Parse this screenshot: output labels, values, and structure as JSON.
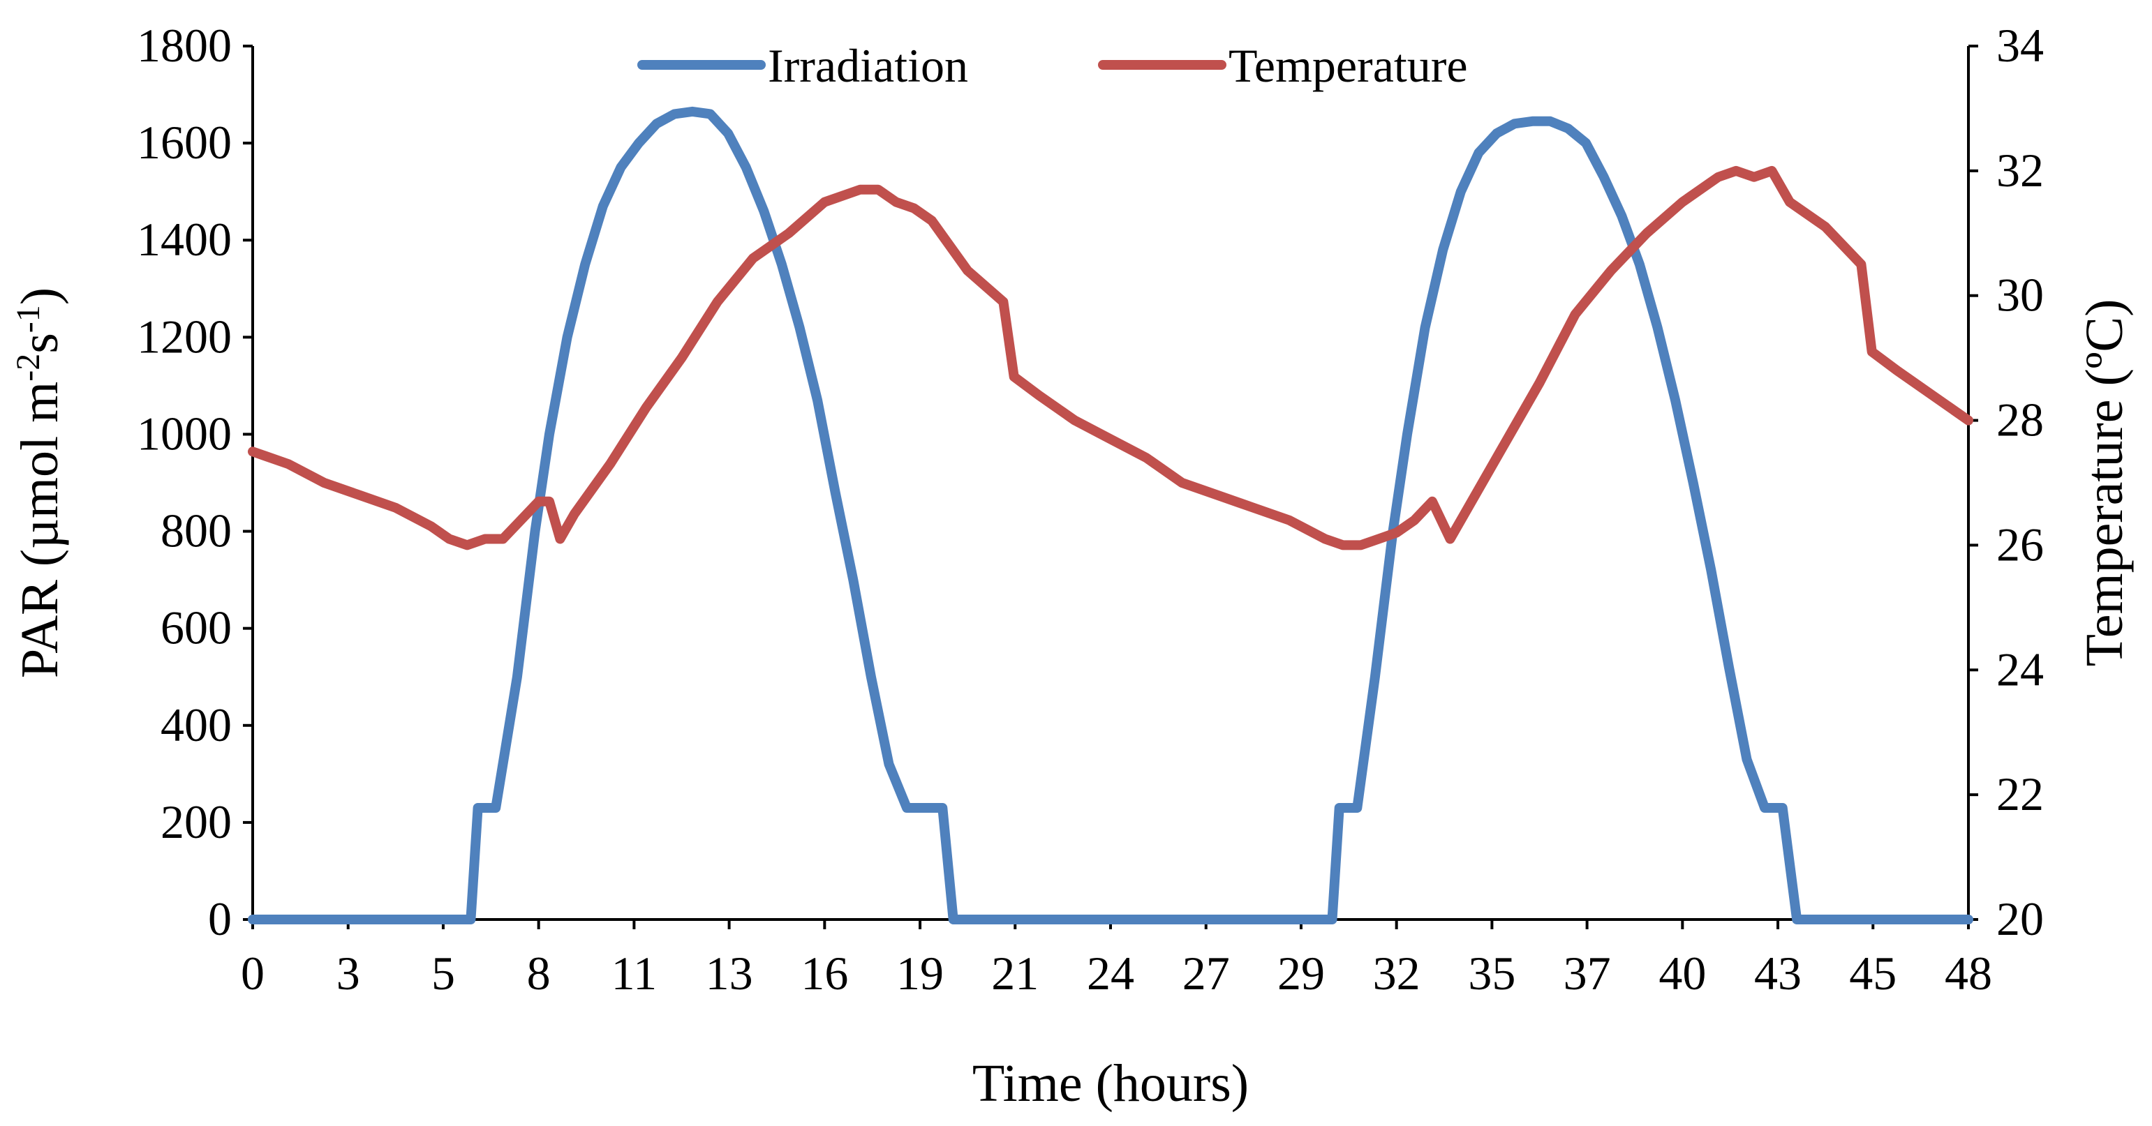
{
  "chart_data": {
    "type": "line",
    "title": "",
    "xlabel": "Time (hours)",
    "ylabel": {
      "prefix": "PAR (µmol m",
      "sup1": "-2",
      "mid": "s",
      "sup2": "-1",
      "suffix": ")"
    },
    "y2label": "Temperature (ºC)",
    "xlim": [
      0,
      48
    ],
    "ylim": [
      0,
      1800
    ],
    "y2lim": [
      20,
      34
    ],
    "x_tick_positions": [
      0,
      2.67,
      5.33,
      8,
      10.67,
      13.33,
      16,
      18.67,
      21.33,
      24,
      26.67,
      29.33,
      32,
      34.67,
      37.33,
      40,
      42.67,
      45.33,
      48
    ],
    "x_tick_labels": [
      "0",
      "3",
      "5",
      "8",
      "11",
      "13",
      "16",
      "19",
      "21",
      "24",
      "27",
      "29",
      "32",
      "35",
      "37",
      "40",
      "43",
      "45",
      "48"
    ],
    "y_ticks": [
      0,
      200,
      400,
      600,
      800,
      1000,
      1200,
      1400,
      1600,
      1800
    ],
    "y_tick_labels": [
      "0",
      "200",
      "400",
      "600",
      "800",
      "1000",
      "1200",
      "1400",
      "1600",
      "1800"
    ],
    "y2_ticks": [
      20,
      22,
      24,
      26,
      28,
      30,
      32,
      34
    ],
    "y2_tick_labels": [
      "20",
      "22",
      "24",
      "26",
      "28",
      "30",
      "32",
      "34"
    ],
    "legend_position": "top-center",
    "series": [
      {
        "name": "Irradiation",
        "axis": "left",
        "color": "#4f81bd",
        "x": [
          0,
          6.1,
          6.3,
          6.8,
          7.4,
          7.9,
          8.3,
          8.8,
          9.3,
          9.8,
          10.3,
          10.8,
          11.3,
          11.8,
          12.3,
          12.8,
          13.3,
          13.8,
          14.3,
          14.8,
          15.3,
          15.8,
          16.3,
          16.8,
          17.3,
          17.8,
          18.3,
          18.8,
          19.3,
          19.6,
          19.9,
          20.0,
          20.3,
          30.2,
          30.4,
          30.9,
          31.4,
          31.9,
          32.3,
          32.8,
          33.3,
          33.8,
          34.3,
          34.8,
          35.3,
          35.8,
          36.3,
          36.8,
          37.3,
          37.8,
          38.3,
          38.8,
          39.3,
          39.8,
          40.3,
          40.8,
          41.3,
          41.8,
          42.3,
          42.8,
          43.2,
          43.6,
          43.8,
          44.2,
          48
        ],
        "values": [
          0,
          0,
          230,
          230,
          500,
          800,
          1000,
          1200,
          1350,
          1470,
          1550,
          1600,
          1640,
          1660,
          1665,
          1660,
          1620,
          1550,
          1460,
          1350,
          1220,
          1070,
          880,
          700,
          500,
          320,
          230,
          230,
          230,
          0,
          0,
          0,
          0,
          0,
          230,
          230,
          500,
          800,
          1000,
          1220,
          1380,
          1500,
          1580,
          1620,
          1640,
          1645,
          1645,
          1630,
          1600,
          1530,
          1450,
          1350,
          1220,
          1070,
          900,
          720,
          520,
          330,
          230,
          230,
          0,
          0,
          0,
          0,
          0
        ]
      },
      {
        "name": "Temperature",
        "axis": "right",
        "color": "#c0504d",
        "x": [
          0,
          1,
          2,
          3,
          4,
          5,
          5.5,
          6,
          6.5,
          7,
          7.5,
          8,
          8.3,
          8.6,
          9,
          9.5,
          10,
          11,
          12,
          13,
          14,
          15,
          16,
          17,
          17.5,
          18,
          18.5,
          19,
          20,
          21,
          21.3,
          22,
          23,
          24,
          25,
          26,
          27,
          28,
          29,
          30,
          30.5,
          31,
          31.5,
          32,
          32.5,
          33,
          33.5,
          34,
          35,
          36,
          37,
          38,
          39,
          40,
          41,
          41.5,
          42,
          42.5,
          43,
          44,
          45,
          45.3,
          46,
          47,
          48
        ],
        "values": [
          27.5,
          27.3,
          27.0,
          26.8,
          26.6,
          26.3,
          26.1,
          26.0,
          26.1,
          26.1,
          26.4,
          26.7,
          26.7,
          26.1,
          26.5,
          26.9,
          27.3,
          28.2,
          29.0,
          29.9,
          30.6,
          31.0,
          31.5,
          31.7,
          31.7,
          31.5,
          31.4,
          31.2,
          30.4,
          29.9,
          28.7,
          28.4,
          28.0,
          27.7,
          27.4,
          27.0,
          26.8,
          26.6,
          26.4,
          26.1,
          26.0,
          26.0,
          26.1,
          26.2,
          26.4,
          26.7,
          26.1,
          26.6,
          27.6,
          28.6,
          29.7,
          30.4,
          31.0,
          31.5,
          31.9,
          32.0,
          31.9,
          32.0,
          31.5,
          31.1,
          30.5,
          29.1,
          28.8,
          28.4,
          28.0
        ]
      }
    ]
  }
}
